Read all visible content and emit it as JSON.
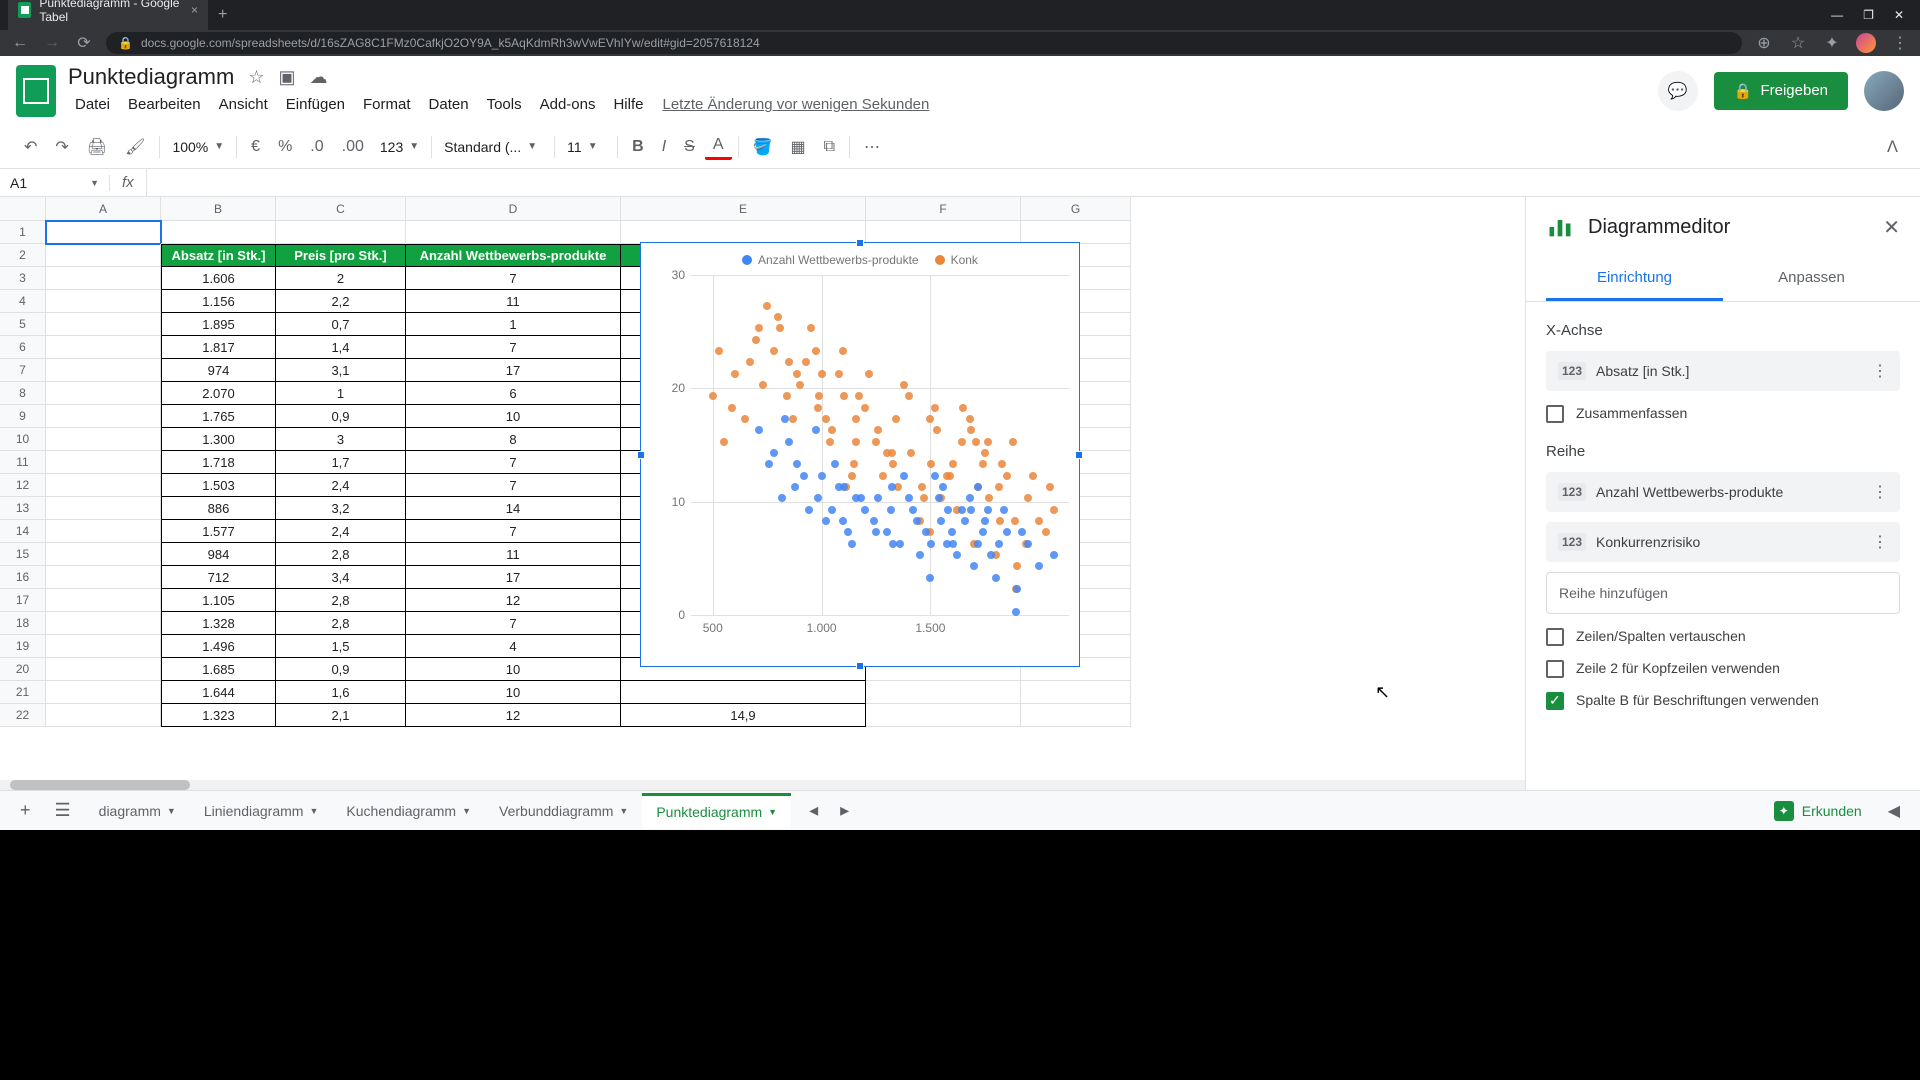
{
  "browser": {
    "tab_title": "Punktediagramm - Google Tabel",
    "url": "docs.google.com/spreadsheets/d/16sZAG8C1FMz0CafkjO2OY9A_k5AqKdmRh3wVwEVhIYw/edit#gid=2057618124"
  },
  "doc": {
    "title": "Punktediagramm",
    "last_edit": "Letzte Änderung vor wenigen Sekunden"
  },
  "menus": [
    "Datei",
    "Bearbeiten",
    "Ansicht",
    "Einfügen",
    "Format",
    "Daten",
    "Tools",
    "Add-ons",
    "Hilfe"
  ],
  "share_label": "Freigeben",
  "toolbar": {
    "zoom": "100%",
    "format_num": "123",
    "font": "Standard (...",
    "font_size": "11"
  },
  "name_box": "A1",
  "columns": {
    "widths": [
      115,
      115,
      130,
      215,
      245,
      155,
      110
    ],
    "letters": [
      "A",
      "B",
      "C",
      "D",
      "E",
      "F",
      "G"
    ]
  },
  "table": {
    "headers": [
      "Absatz [in Stk.]",
      "Preis [pro Stk.]",
      "Anzahl Wettbewerbs-produkte",
      "Konkurrenzrisiko"
    ],
    "rows": [
      [
        "1.606",
        "2",
        "7",
        ""
      ],
      [
        "1.156",
        "2,2",
        "11",
        ""
      ],
      [
        "1.895",
        "0,7",
        "1",
        ""
      ],
      [
        "1.817",
        "1,4",
        "7",
        ""
      ],
      [
        "974",
        "3,1",
        "17",
        ""
      ],
      [
        "2.070",
        "1",
        "6",
        ""
      ],
      [
        "1.765",
        "0,9",
        "10",
        ""
      ],
      [
        "1.300",
        "3",
        "8",
        ""
      ],
      [
        "1.718",
        "1,7",
        "7",
        ""
      ],
      [
        "1.503",
        "2,4",
        "7",
        ""
      ],
      [
        "886",
        "3,2",
        "14",
        ""
      ],
      [
        "1.577",
        "2,4",
        "7",
        ""
      ],
      [
        "984",
        "2,8",
        "11",
        ""
      ],
      [
        "712",
        "3,4",
        "17",
        ""
      ],
      [
        "1.105",
        "2,8",
        "12",
        ""
      ],
      [
        "1.328",
        "2,8",
        "7",
        ""
      ],
      [
        "1.496",
        "1,5",
        "4",
        ""
      ],
      [
        "1.685",
        "0,9",
        "10",
        ""
      ],
      [
        "1.644",
        "1,6",
        "10",
        ""
      ],
      [
        "1.323",
        "2,1",
        "12",
        "14,9"
      ]
    ]
  },
  "chart": {
    "type": "scatter",
    "legend": [
      {
        "label": "Anzahl Wettbewerbs-produkte",
        "color": "#4285f4"
      },
      {
        "label": "Konk",
        "color": "#ea8639"
      }
    ],
    "y_ticks": [
      0,
      10,
      20,
      30
    ],
    "x_ticks": [
      500,
      "1.000",
      "1.500"
    ],
    "x_min": 400,
    "x_max": 2100,
    "y_min": 0,
    "y_max": 30,
    "series_blue_color": "#4285f4",
    "series_orange_color": "#ea8639",
    "series_blue": [
      [
        1606,
        7
      ],
      [
        1156,
        11
      ],
      [
        1895,
        1
      ],
      [
        1817,
        7
      ],
      [
        974,
        17
      ],
      [
        2070,
        6
      ],
      [
        1765,
        10
      ],
      [
        1300,
        8
      ],
      [
        1718,
        7
      ],
      [
        1503,
        7
      ],
      [
        886,
        14
      ],
      [
        1577,
        7
      ],
      [
        984,
        11
      ],
      [
        712,
        17
      ],
      [
        1105,
        12
      ],
      [
        1328,
        7
      ],
      [
        1496,
        4
      ],
      [
        1685,
        10
      ],
      [
        1644,
        10
      ],
      [
        1323,
        12
      ],
      [
        850,
        16
      ],
      [
        920,
        13
      ],
      [
        1050,
        10
      ],
      [
        1100,
        9
      ],
      [
        1200,
        10
      ],
      [
        1250,
        8
      ],
      [
        1400,
        11
      ],
      [
        1450,
        6
      ],
      [
        1550,
        9
      ],
      [
        1600,
        8
      ],
      [
        1700,
        5
      ],
      [
        1750,
        9
      ],
      [
        1800,
        4
      ],
      [
        1850,
        8
      ],
      [
        1900,
        3
      ],
      [
        1950,
        7
      ],
      [
        2000,
        5
      ],
      [
        780,
        15
      ],
      [
        830,
        18
      ],
      [
        1380,
        13
      ],
      [
        1420,
        10
      ],
      [
        1560,
        12
      ],
      [
        1620,
        6
      ],
      [
        1680,
        11
      ],
      [
        1740,
        8
      ],
      [
        1060,
        14
      ],
      [
        1120,
        8
      ],
      [
        1180,
        11
      ],
      [
        1240,
        9
      ],
      [
        1360,
        7
      ],
      [
        880,
        12
      ],
      [
        940,
        10
      ],
      [
        1000,
        13
      ],
      [
        1480,
        8
      ],
      [
        1540,
        11
      ],
      [
        1660,
        9
      ],
      [
        1720,
        12
      ],
      [
        1780,
        6
      ],
      [
        1840,
        10
      ],
      [
        1920,
        8
      ],
      [
        760,
        14
      ],
      [
        820,
        11
      ],
      [
        1020,
        9
      ],
      [
        1080,
        12
      ],
      [
        1140,
        7
      ],
      [
        1260,
        11
      ],
      [
        1320,
        10
      ],
      [
        1440,
        9
      ],
      [
        1520,
        13
      ],
      [
        1580,
        10
      ]
    ],
    "series_orange": [
      [
        1606,
        14
      ],
      [
        1156,
        18
      ],
      [
        1895,
        3
      ],
      [
        1817,
        12
      ],
      [
        974,
        24
      ],
      [
        2070,
        10
      ],
      [
        1765,
        16
      ],
      [
        1300,
        15
      ],
      [
        1718,
        12
      ],
      [
        1503,
        14
      ],
      [
        886,
        22
      ],
      [
        1577,
        13
      ],
      [
        984,
        19
      ],
      [
        712,
        26
      ],
      [
        1105,
        20
      ],
      [
        1328,
        14
      ],
      [
        1496,
        8
      ],
      [
        1685,
        17
      ],
      [
        1644,
        16
      ],
      [
        1323,
        15
      ],
      [
        500,
        20
      ],
      [
        550,
        16
      ],
      [
        600,
        22
      ],
      [
        650,
        18
      ],
      [
        700,
        25
      ],
      [
        750,
        28
      ],
      [
        800,
        27
      ],
      [
        850,
        23
      ],
      [
        900,
        21
      ],
      [
        950,
        26
      ],
      [
        1000,
        22
      ],
      [
        1050,
        17
      ],
      [
        1100,
        24
      ],
      [
        1150,
        14
      ],
      [
        1200,
        19
      ],
      [
        1250,
        16
      ],
      [
        1350,
        12
      ],
      [
        1400,
        20
      ],
      [
        1450,
        9
      ],
      [
        1500,
        18
      ],
      [
        1550,
        11
      ],
      [
        1650,
        19
      ],
      [
        1700,
        7
      ],
      [
        1750,
        15
      ],
      [
        1800,
        6
      ],
      [
        1850,
        13
      ],
      [
        1900,
        5
      ],
      [
        1950,
        11
      ],
      [
        2000,
        9
      ],
      [
        2050,
        12
      ],
      [
        780,
        24
      ],
      [
        840,
        20
      ],
      [
        1020,
        18
      ],
      [
        1080,
        22
      ],
      [
        1140,
        13
      ],
      [
        1260,
        17
      ],
      [
        1380,
        21
      ],
      [
        1460,
        12
      ],
      [
        1520,
        19
      ],
      [
        1620,
        10
      ],
      [
        1680,
        18
      ],
      [
        1740,
        14
      ],
      [
        1820,
        9
      ],
      [
        1880,
        16
      ],
      [
        1940,
        7
      ],
      [
        530,
        24
      ],
      [
        590,
        19
      ],
      [
        670,
        23
      ],
      [
        730,
        21
      ],
      [
        870,
        18
      ],
      [
        1160,
        16
      ],
      [
        1220,
        22
      ],
      [
        1280,
        13
      ],
      [
        1340,
        18
      ],
      [
        1410,
        15
      ],
      [
        1470,
        11
      ],
      [
        1530,
        17
      ],
      [
        1590,
        13
      ],
      [
        1710,
        16
      ],
      [
        1770,
        11
      ],
      [
        1830,
        14
      ],
      [
        1890,
        9
      ],
      [
        1970,
        13
      ],
      [
        2030,
        8
      ],
      [
        810,
        26
      ],
      [
        930,
        23
      ],
      [
        990,
        20
      ],
      [
        1040,
        16
      ],
      [
        1110,
        12
      ],
      [
        1170,
        20
      ]
    ]
  },
  "sidebar": {
    "title": "Diagrammeditor",
    "tab_setup": "Einrichtung",
    "tab_customize": "Anpassen",
    "x_axis_label": "X-Achse",
    "x_axis_field": "Absatz [in Stk.]",
    "aggregate_label": "Zusammenfassen",
    "series_label": "Reihe",
    "series1": "Anzahl Wettbewerbs-produkte",
    "series2": "Konkurrenzrisiko",
    "add_series": "Reihe hinzufügen",
    "switch_label": "Zeilen/Spalten vertauschen",
    "row2_label": "Zeile 2 für Kopfzeilen verwenden",
    "colb_label": "Spalte B für Beschriftungen verwenden"
  },
  "sheet_tabs": [
    {
      "name": "diagramm",
      "active": false
    },
    {
      "name": "Liniendiagramm",
      "active": false
    },
    {
      "name": "Kuchendiagramm",
      "active": false
    },
    {
      "name": "Verbunddiagramm",
      "active": false
    },
    {
      "name": "Punktediagramm",
      "active": true
    }
  ],
  "explore_label": "Erkunden"
}
